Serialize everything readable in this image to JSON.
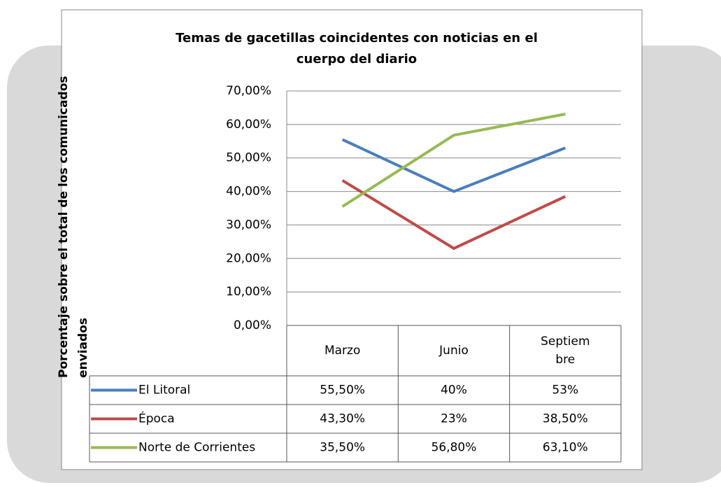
{
  "chart_data": {
    "type": "line",
    "title": "Temas de gacetillas coincidentes con noticias en el cuerpo del diario",
    "y_label": "Porcentaje sobre el total de los comunicados enviados",
    "categories": [
      "Marzo",
      "Junio",
      "Septiembre"
    ],
    "series": [
      {
        "name": "El Litoral",
        "color": "#4a7ebb",
        "values": [
          55.5,
          40,
          53
        ],
        "value_labels": [
          "55,50%",
          "40%",
          "53%"
        ]
      },
      {
        "name": "Época",
        "color": "#be4b48",
        "values": [
          43.3,
          23,
          38.5
        ],
        "value_labels": [
          "43,30%",
          "23%",
          "38,50%"
        ]
      },
      {
        "name": "Norte de Corrientes",
        "color": "#98b954",
        "values": [
          35.5,
          56.8,
          63.1
        ],
        "value_labels": [
          "35,50%",
          "56,80%",
          "63,10%"
        ]
      }
    ],
    "ylim": [
      0,
      70
    ],
    "yticks": [
      {
        "value": 0,
        "label": "0,00%"
      },
      {
        "value": 10,
        "label": "10,00%"
      },
      {
        "value": 20,
        "label": "20,00%"
      },
      {
        "value": 30,
        "label": "30,00%"
      },
      {
        "value": 40,
        "label": "40,00%"
      },
      {
        "value": 50,
        "label": "50,00%"
      },
      {
        "value": 60,
        "label": "60,00%"
      },
      {
        "value": 70,
        "label": "70,00%"
      }
    ],
    "grid": true
  }
}
